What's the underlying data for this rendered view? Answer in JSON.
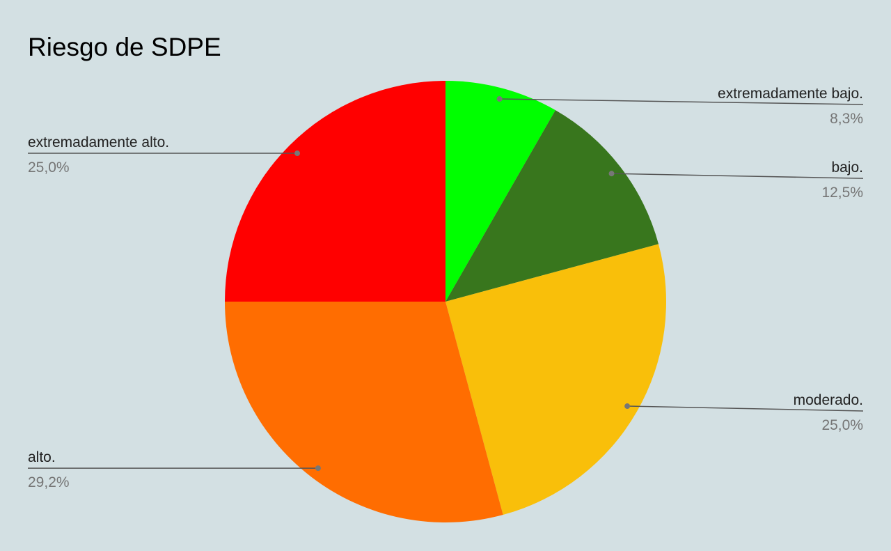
{
  "chart_data": {
    "type": "pie",
    "title": "Riesgo de SDPE",
    "categories": [
      "extremadamente bajo.",
      "bajo.",
      "moderado.",
      "alto.",
      "extremadamente alto."
    ],
    "values": [
      8.3,
      12.5,
      25.0,
      29.2,
      25.0
    ],
    "value_labels": [
      "8,3%",
      "12,5%",
      "25,0%",
      "29,2%",
      "25,0%"
    ],
    "colors": [
      "#00ff00",
      "#38761d",
      "#f9bf0a",
      "#ff6d01",
      "#ff0000"
    ]
  }
}
